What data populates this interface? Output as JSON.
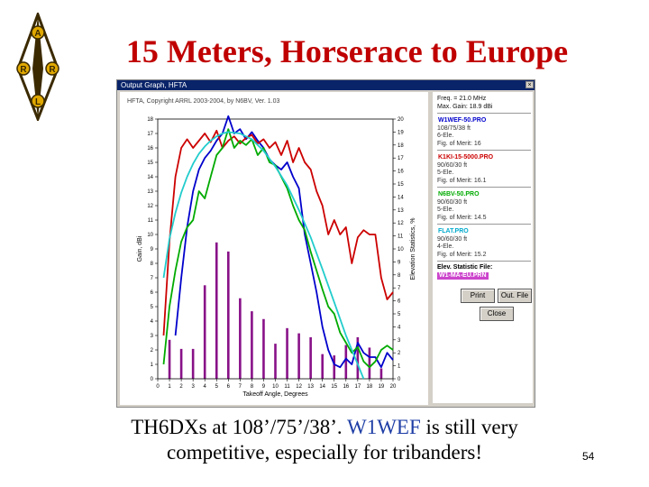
{
  "slide": {
    "title": "15 Meters, Horserace to Europe",
    "caption_part1": "TH6DXs at 108’/75’/38’.",
    "caption_highlight": "W1WEF",
    "caption_part2": "is still very",
    "caption_line2": "competitive, especially for tribanders!",
    "page_number": "54"
  },
  "logo": {
    "letters": [
      "A",
      "R",
      "R",
      "L"
    ],
    "color": "#3b2a00",
    "accent": "#e0a800"
  },
  "window": {
    "title": "Output Graph, HFTA",
    "close_glyph": "×",
    "plot_header": "HFTA, Copyright ARRL 2003-2004, by N6BV, Ver. 1.03"
  },
  "side_panel": {
    "freq": "Freq. = 21.0 MHz",
    "max_gain": "Max. Gain: 18.9 dBi",
    "profiles": [
      {
        "name": "W1WEF-50.PRO",
        "color": "#0000cc",
        "height": "108/75/38 ft",
        "type": "6-Ele.",
        "merit": "Fig. of Merit: 16"
      },
      {
        "name": "K1KI-15-5000.PRO",
        "color": "#cc0000",
        "height": "90/60/30 ft",
        "type": "5-Ele.",
        "merit": "Fig. of Merit: 16.1"
      },
      {
        "name": "N6BV-50.PRO",
        "color": "#00aa00",
        "height": "90/60/30 ft",
        "type": "5-Ele.",
        "merit": "Fig. of Merit: 14.5"
      },
      {
        "name": "FLAT.PRO",
        "color": "#00aacc",
        "height": "90/60/30 ft",
        "type": "4-Ele.",
        "merit": "Fig. of Merit: 15.2"
      }
    ],
    "elev_label": "Elev. Statistic File:",
    "elev_file": "W1-MA-EU.PRN",
    "print_label": "Print",
    "outfile_label": "Out. File",
    "close_label": "Close"
  },
  "chart_data": {
    "type": "line",
    "xlabel": "Takeoff Angle, Degrees",
    "ylabel": "Gain, dBi",
    "y2label": "Elevation Statistics, %",
    "xlim": [
      0,
      20
    ],
    "ylim": [
      0,
      18
    ],
    "y2lim": [
      0,
      20
    ],
    "x_ticks": [
      0,
      1,
      2,
      3,
      4,
      5,
      6,
      7,
      8,
      9,
      10,
      11,
      12,
      13,
      14,
      15,
      16,
      17,
      18,
      19,
      20
    ],
    "y_ticks": [
      0,
      1,
      2,
      3,
      4,
      5,
      6,
      7,
      8,
      9,
      10,
      11,
      12,
      13,
      14,
      15,
      16,
      17,
      18
    ],
    "y2_ticks": [
      0,
      1,
      2,
      3,
      4,
      5,
      6,
      7,
      8,
      9,
      10,
      11,
      12,
      13,
      14,
      15,
      16,
      17,
      18,
      19,
      20
    ],
    "bars": {
      "color": "#881188",
      "x": [
        1,
        2,
        3,
        4,
        5,
        6,
        7,
        8,
        9,
        10,
        11,
        12,
        13,
        14,
        15,
        16,
        17,
        18,
        19
      ],
      "values": [
        3,
        2.3,
        2.3,
        7.2,
        10.5,
        9.8,
        6.2,
        5.2,
        4.6,
        2.7,
        3.9,
        3.5,
        3.2,
        1.9,
        1.8,
        2.6,
        3.2,
        2.4,
        0.8
      ]
    },
    "series": [
      {
        "name": "W1WEF-50.PRO",
        "color": "#0000cc",
        "points": [
          [
            1.5,
            3
          ],
          [
            2,
            7
          ],
          [
            2.5,
            10.5
          ],
          [
            3,
            13
          ],
          [
            3.5,
            14.5
          ],
          [
            4,
            15.3
          ],
          [
            4.5,
            15.8
          ],
          [
            5,
            16.5
          ],
          [
            5.5,
            17
          ],
          [
            6,
            18.2
          ],
          [
            6.5,
            17
          ],
          [
            7,
            17.3
          ],
          [
            7.5,
            16.6
          ],
          [
            8,
            17.1
          ],
          [
            8.5,
            16.5
          ],
          [
            9,
            16
          ],
          [
            9.5,
            15.2
          ],
          [
            10,
            14.8
          ],
          [
            10.5,
            14.5
          ],
          [
            11,
            15
          ],
          [
            11.5,
            14
          ],
          [
            12,
            13.2
          ],
          [
            12.5,
            10
          ],
          [
            13,
            8
          ],
          [
            13.5,
            6
          ],
          [
            14,
            3.6
          ],
          [
            14.5,
            2
          ],
          [
            15,
            1
          ],
          [
            15.5,
            0.8
          ],
          [
            16,
            1.4
          ],
          [
            16.5,
            1
          ],
          [
            17,
            2.5
          ],
          [
            17.5,
            1.8
          ],
          [
            18,
            1.5
          ],
          [
            18.5,
            1.5
          ],
          [
            19,
            0.8
          ],
          [
            19.5,
            1.8
          ],
          [
            20,
            1.3
          ]
        ]
      },
      {
        "name": "K1KI-15-5000.PRO",
        "color": "#cc0000",
        "points": [
          [
            0.5,
            3
          ],
          [
            1,
            9.5
          ],
          [
            1.5,
            14
          ],
          [
            2,
            16
          ],
          [
            2.5,
            16.6
          ],
          [
            3,
            16
          ],
          [
            3.5,
            16.5
          ],
          [
            4,
            17
          ],
          [
            4.5,
            16.4
          ],
          [
            5,
            17.2
          ],
          [
            5.5,
            16
          ],
          [
            6,
            16.5
          ],
          [
            6.5,
            16.8
          ],
          [
            7,
            16.3
          ],
          [
            7.5,
            16.7
          ],
          [
            8,
            16.9
          ],
          [
            8.5,
            16.3
          ],
          [
            9,
            16.6
          ],
          [
            9.5,
            16
          ],
          [
            10,
            16.4
          ],
          [
            10.5,
            15.5
          ],
          [
            11,
            16.5
          ],
          [
            11.5,
            15
          ],
          [
            12,
            16
          ],
          [
            12.5,
            15
          ],
          [
            13,
            14.5
          ],
          [
            13.5,
            13
          ],
          [
            14,
            12
          ],
          [
            14.5,
            10
          ],
          [
            15,
            11
          ],
          [
            15.5,
            10
          ],
          [
            16,
            10.5
          ],
          [
            16.5,
            8
          ],
          [
            17,
            9.8
          ],
          [
            17.5,
            10.3
          ],
          [
            18,
            10
          ],
          [
            18.5,
            10
          ],
          [
            19,
            7
          ],
          [
            19.5,
            5.5
          ],
          [
            20,
            6
          ]
        ]
      },
      {
        "name": "N6BV-50.PRO",
        "color": "#00aa00",
        "points": [
          [
            0.5,
            1
          ],
          [
            1,
            5
          ],
          [
            1.5,
            7.5
          ],
          [
            2,
            9.5
          ],
          [
            2.5,
            10.5
          ],
          [
            3,
            11
          ],
          [
            3.5,
            13
          ],
          [
            4,
            12.5
          ],
          [
            4.5,
            14
          ],
          [
            5,
            15.5
          ],
          [
            5.5,
            16
          ],
          [
            6,
            17.3
          ],
          [
            6.5,
            16
          ],
          [
            7,
            16.5
          ],
          [
            7.5,
            16.2
          ],
          [
            8,
            16.6
          ],
          [
            8.5,
            15.5
          ],
          [
            9,
            16
          ],
          [
            9.5,
            15
          ],
          [
            10,
            14.8
          ],
          [
            10.5,
            14
          ],
          [
            11,
            13.2
          ],
          [
            11.5,
            12
          ],
          [
            12,
            11
          ],
          [
            12.5,
            10.3
          ],
          [
            13,
            8.8
          ],
          [
            13.5,
            7.5
          ],
          [
            14,
            6.2
          ],
          [
            14.5,
            5
          ],
          [
            15,
            4.5
          ],
          [
            15.5,
            3.2
          ],
          [
            16,
            2.5
          ],
          [
            16.5,
            1.8
          ],
          [
            17,
            2.2
          ],
          [
            17.5,
            1.2
          ],
          [
            18,
            0.8
          ],
          [
            18.5,
            1.2
          ],
          [
            19,
            2
          ],
          [
            19.5,
            2.3
          ],
          [
            20,
            2
          ]
        ]
      },
      {
        "name": "FLAT.PRO",
        "color": "#22cccc",
        "points": [
          [
            0.5,
            7
          ],
          [
            1,
            9.7
          ],
          [
            1.5,
            11.5
          ],
          [
            2,
            12.9
          ],
          [
            2.5,
            14
          ],
          [
            3,
            14.9
          ],
          [
            3.5,
            15.6
          ],
          [
            4,
            16.1
          ],
          [
            4.5,
            16.5
          ],
          [
            5,
            16.8
          ],
          [
            5.5,
            17
          ],
          [
            6,
            17.1
          ],
          [
            7,
            17
          ],
          [
            8,
            16.6
          ],
          [
            9,
            15.8
          ],
          [
            10,
            14.7
          ],
          [
            11,
            13.4
          ],
          [
            12,
            11.7
          ],
          [
            13,
            9.8
          ],
          [
            14,
            7.6
          ],
          [
            15,
            5.3
          ],
          [
            16,
            3
          ],
          [
            17,
            1
          ],
          [
            17.5,
            0
          ]
        ]
      }
    ]
  }
}
